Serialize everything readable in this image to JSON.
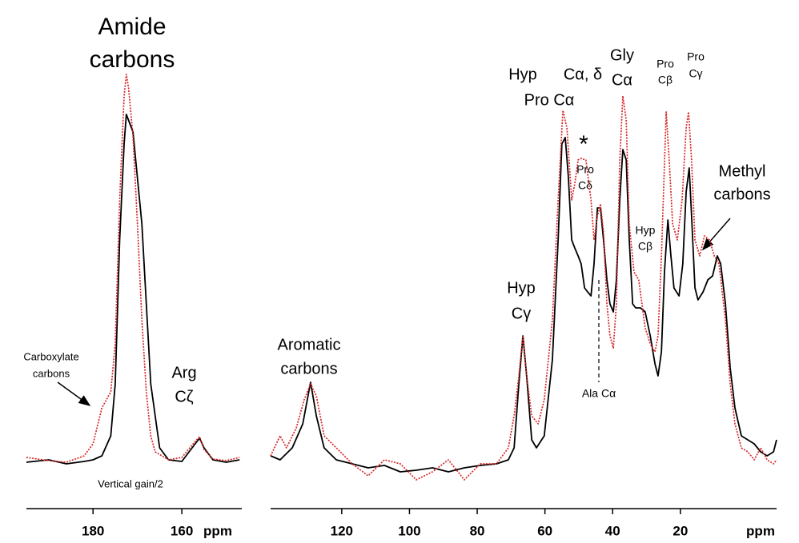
{
  "chart_data": [
    {
      "type": "line",
      "xlabel": "ppm",
      "xlim": [
        195,
        146.5
      ],
      "ylim": [
        0,
        105
      ],
      "xticks": [
        180,
        160
      ],
      "annotations": [
        "Amide",
        "carbons",
        "Carboxylate",
        "carbons",
        "Arg",
        "Cζ",
        "Vertical gain/2"
      ],
      "series": [
        {
          "color": "#000000",
          "style": "solid",
          "x": [
            195,
            190,
            186,
            182,
            180,
            178,
            176,
            175,
            174,
            173,
            172.5,
            171,
            169,
            168,
            167,
            165,
            163,
            160,
            157,
            156,
            155,
            153,
            150,
            147
          ],
          "values": [
            4.4,
            5,
            4,
            4.6,
            5,
            6,
            11,
            24,
            60,
            84,
            91.4,
            87,
            64,
            44,
            24,
            8,
            5,
            4.6,
            9,
            10.4,
            8,
            5,
            4.4,
            5
          ]
        },
        {
          "color": "#d62728",
          "style": "dotted",
          "x": [
            195,
            190,
            186,
            182,
            180,
            178,
            176,
            175,
            174,
            173,
            172.5,
            172,
            171,
            170,
            169,
            168,
            167,
            166,
            163,
            160,
            157,
            156,
            155,
            153,
            150,
            147
          ],
          "values": [
            5.6,
            4.8,
            4.4,
            6,
            9,
            18,
            22,
            34,
            70,
            96,
            101.4,
            98,
            86,
            64,
            40,
            22,
            11,
            7,
            5,
            5.6,
            9.6,
            10.8,
            7.6,
            5.2,
            4.8,
            5.6
          ]
        }
      ]
    },
    {
      "type": "line",
      "xlabel": "ppm",
      "xlim": [
        141,
        -8.4
      ],
      "ylim": [
        0,
        105
      ],
      "xticks": [
        120,
        100,
        80,
        60,
        40,
        20
      ],
      "annotations": [
        "Hyp",
        "Cα, δ",
        "Pro Cα",
        "Gly",
        "Cα",
        "Pro",
        "Cβ",
        "Pro",
        "Cγ",
        "*",
        "Pro",
        "Cδ",
        "Hyp",
        "Cβ",
        "Methyl",
        "carbons",
        "Hyp",
        "Cγ",
        "Aromatic",
        "carbons",
        "Ala Cα"
      ],
      "series": [
        {
          "color": "#000000",
          "style": "solid",
          "x": [
            141.0,
            138.2,
            134.6,
            131.5,
            129.2,
            127.5,
            125.2,
            121.6,
            116.9,
            112.2,
            107.4,
            102.7,
            98.0,
            93.2,
            88.5,
            83.8,
            79.1,
            74.3,
            70.8,
            69.1,
            67.7,
            66.5,
            65.4,
            63.9,
            62.5,
            60.2,
            57.8,
            56.1,
            55.0,
            54.0,
            53.1,
            52.1,
            51.2,
            50.2,
            49.3,
            48.3,
            47.4,
            46.4,
            45.5,
            44.5,
            43.6,
            42.7,
            41.7,
            40.8,
            39.8,
            38.9,
            37.9,
            37.0,
            36.0,
            35.1,
            34.1,
            33.2,
            31.8,
            30.4,
            28.9,
            27.5,
            26.6,
            25.6,
            24.7,
            23.7,
            22.8,
            21.9,
            20.4,
            19.3,
            18.3,
            17.4,
            16.7,
            15.7,
            14.8,
            13.3,
            11.9,
            10.5,
            9.1,
            8.1,
            6.7,
            5.3,
            3.9,
            2.0,
            0.1,
            -1.8,
            -3.7,
            -5.6,
            -7.5,
            -8.4
          ],
          "values": [
            6,
            5,
            8,
            14,
            24.4,
            16,
            8,
            5,
            4,
            3,
            3.6,
            2,
            2.4,
            3,
            2,
            3,
            3.6,
            4,
            5,
            8,
            24,
            36,
            26,
            10,
            8,
            11,
            30,
            60,
            84,
            85.6,
            76,
            60,
            58,
            56,
            54,
            48,
            47,
            46,
            54,
            68,
            68,
            60,
            50,
            44,
            42,
            50,
            70,
            82.6,
            80,
            60,
            44,
            43,
            43,
            42,
            36,
            29,
            26,
            32,
            52,
            65,
            56,
            48,
            46,
            54,
            72,
            78,
            66,
            48,
            45,
            47,
            50,
            51,
            56,
            54,
            44,
            28,
            18,
            11,
            10,
            9,
            7,
            6,
            7,
            10
          ]
        },
        {
          "color": "#d62728",
          "style": "dotted",
          "x": [
            141.0,
            138.2,
            136.3,
            133.4,
            131.1,
            129.2,
            127.5,
            125.2,
            121.6,
            116.9,
            112.2,
            107.4,
            102.7,
            98.0,
            93.2,
            88.5,
            83.8,
            79.1,
            74.3,
            70.8,
            69.1,
            67.7,
            66.5,
            65.4,
            63.9,
            62.0,
            60.2,
            57.8,
            56.1,
            54.7,
            53.5,
            52.1,
            51.2,
            50.2,
            49.3,
            47.9,
            46.4,
            45.5,
            44.5,
            43.6,
            42.7,
            41.7,
            40.8,
            39.8,
            38.9,
            37.9,
            37.0,
            36.0,
            35.1,
            33.7,
            32.3,
            30.4,
            28.9,
            27.5,
            26.6,
            25.6,
            24.2,
            23.3,
            22.3,
            20.9,
            19.5,
            18.3,
            17.6,
            16.7,
            15.7,
            14.3,
            12.9,
            11.4,
            10.0,
            8.6,
            6.7,
            5.3,
            3.9,
            2.0,
            0.1,
            -1.8,
            -3.7,
            -5.6,
            -7.5,
            -8.4
          ],
          "values": [
            6,
            11,
            8,
            13,
            20,
            24,
            21,
            11,
            8,
            4,
            1,
            5,
            4,
            0,
            2,
            5,
            0,
            4,
            4,
            8,
            16,
            26,
            36,
            26,
            16,
            14,
            20,
            40,
            70,
            92.4,
            88,
            70,
            74,
            80,
            80.4,
            80,
            70,
            60,
            66,
            69,
            62,
            44,
            36,
            33,
            44,
            80,
            96,
            90,
            64,
            52,
            50,
            38,
            34,
            32,
            36,
            56,
            92,
            80,
            64,
            60,
            70,
            88,
            92,
            80,
            60,
            56,
            61,
            60,
            56,
            54,
            40,
            24,
            14,
            8,
            7,
            5,
            8,
            5,
            4,
            5
          ]
        }
      ]
    }
  ]
}
